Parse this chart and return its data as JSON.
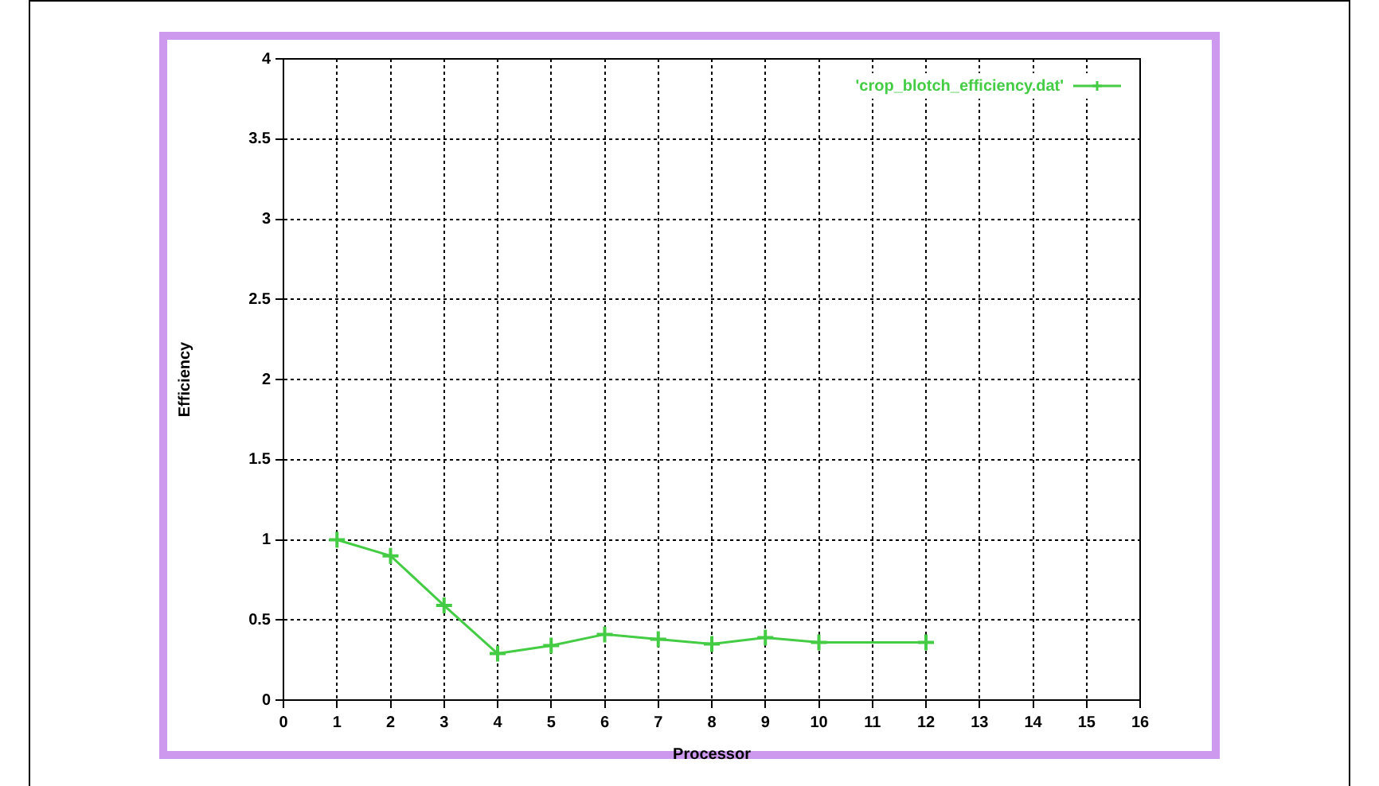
{
  "chart_data": {
    "type": "line",
    "xlabel": "Processor",
    "ylabel": "Efficiency",
    "x": [
      1,
      2,
      3,
      4,
      5,
      6,
      7,
      8,
      9,
      10,
      12
    ],
    "series": [
      {
        "name": "'crop_blotch_efficiency.dat'",
        "color": "#44cc44",
        "values": [
          1.0,
          0.9,
          0.59,
          0.29,
          0.34,
          0.41,
          0.38,
          0.35,
          0.39,
          0.36,
          0.36
        ]
      }
    ],
    "xlim": [
      0,
      16
    ],
    "xticks": [
      0,
      1,
      2,
      3,
      4,
      5,
      6,
      7,
      8,
      9,
      10,
      11,
      12,
      13,
      14,
      15,
      16
    ],
    "ylim": [
      0,
      4
    ],
    "yticks": [
      0,
      0.5,
      1,
      1.5,
      2,
      2.5,
      3,
      3.5,
      4
    ],
    "grid": true,
    "legend": "top right",
    "marker": "cross",
    "line_style": "solid"
  }
}
